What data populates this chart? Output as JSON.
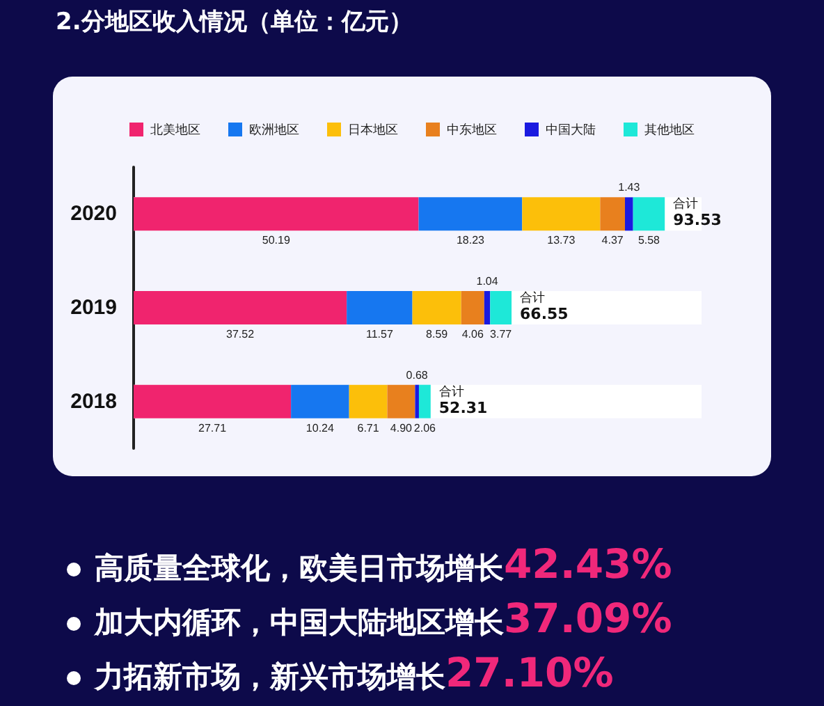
{
  "chart_data": {
    "type": "bar",
    "orientation": "horizontal",
    "stacked": true,
    "data_labels": true,
    "legend": "top",
    "title": "2.分地区收入情况（单位：亿元）",
    "categories": [
      "2020",
      "2019",
      "2018"
    ],
    "series": [
      {
        "name": "北美地区",
        "color": "#f0246e",
        "values": [
          50.19,
          37.52,
          27.71
        ]
      },
      {
        "name": "欧洲地区",
        "color": "#1677f0",
        "values": [
          18.23,
          11.57,
          10.24
        ]
      },
      {
        "name": "日本地区",
        "color": "#fcbf0a",
        "values": [
          13.73,
          8.59,
          6.71
        ]
      },
      {
        "name": "中东地区",
        "color": "#e8801e",
        "values": [
          4.37,
          4.06,
          4.9
        ],
        "value_labels": [
          "4.37",
          "4.06",
          "4.90"
        ]
      },
      {
        "name": "中国大陆",
        "color": "#1a1ae0",
        "values": [
          1.43,
          1.04,
          0.68
        ]
      },
      {
        "name": "其他地区",
        "color": "#1ee8d8",
        "values": [
          5.58,
          3.77,
          2.06
        ]
      }
    ],
    "totals": [
      "93.53",
      "66.55",
      "52.31"
    ],
    "annotations": [
      "合计",
      "合计",
      "合计",
      "高质量全球化，欧美日市场增长42.43%",
      "加大内循环，中国大陆地区增长37.09%",
      "力拓新市场，新兴市场增长27.10%"
    ]
  }
}
